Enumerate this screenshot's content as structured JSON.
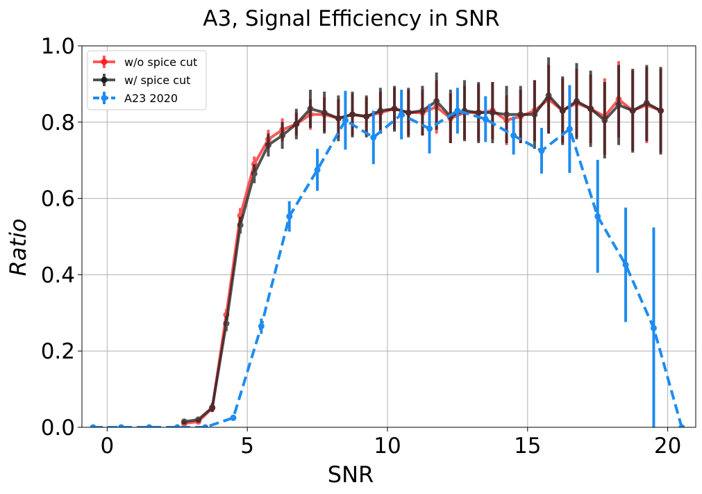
{
  "chart_data": {
    "type": "line",
    "title": "A3, Signal Efficiency in SNR",
    "xlabel": "SNR",
    "ylabel": "Ratio",
    "xlim": [
      -0.9,
      21.0
    ],
    "ylim": [
      0.0,
      1.0
    ],
    "xticks": [
      0,
      5,
      10,
      15,
      20
    ],
    "yticks": [
      0.0,
      0.2,
      0.4,
      0.6,
      0.8,
      1.0
    ],
    "xtick_labels": [
      "0",
      "5",
      "10",
      "15",
      "20"
    ],
    "ytick_labels": [
      "0.0",
      "0.2",
      "0.4",
      "0.6",
      "0.8",
      "1.0"
    ],
    "grid": true,
    "legend_position": "top-left",
    "series": [
      {
        "name": "w/o spice cut",
        "color": "#ff2020",
        "line_style": "solid",
        "x": [
          2.75,
          3.25,
          3.75,
          4.25,
          4.75,
          5.25,
          5.75,
          6.25,
          6.75,
          7.25,
          7.75,
          8.25,
          8.75,
          9.25,
          9.75,
          10.25,
          10.75,
          11.25,
          11.75,
          12.25,
          12.75,
          13.25,
          13.75,
          14.25,
          14.75,
          15.25,
          15.75,
          16.25,
          16.75,
          17.25,
          17.75,
          18.25,
          18.75,
          19.25,
          19.75
        ],
        "y": [
          0.01,
          0.015,
          0.05,
          0.295,
          0.555,
          0.69,
          0.755,
          0.78,
          0.795,
          0.82,
          0.82,
          0.81,
          0.82,
          0.815,
          0.825,
          0.835,
          0.825,
          0.825,
          0.84,
          0.81,
          0.825,
          0.825,
          0.83,
          0.805,
          0.815,
          0.83,
          0.86,
          0.83,
          0.85,
          0.835,
          0.815,
          0.86,
          0.83,
          0.845,
          0.83
        ],
        "err": [
          0.006,
          0.007,
          0.01,
          0.015,
          0.02,
          0.02,
          0.025,
          0.03,
          0.03,
          0.04,
          0.045,
          0.05,
          0.055,
          0.05,
          0.055,
          0.055,
          0.06,
          0.06,
          0.07,
          0.065,
          0.07,
          0.075,
          0.075,
          0.065,
          0.07,
          0.08,
          0.09,
          0.085,
          0.09,
          0.09,
          0.1,
          0.1,
          0.105,
          0.1,
          0.11
        ]
      },
      {
        "name": "w/ spice cut",
        "color": "#1a1a1a",
        "line_style": "solid",
        "x": [
          2.75,
          3.25,
          3.75,
          4.25,
          4.75,
          5.25,
          5.75,
          6.25,
          6.75,
          7.25,
          7.75,
          8.25,
          8.75,
          9.25,
          9.75,
          10.25,
          10.75,
          11.25,
          11.75,
          12.25,
          12.75,
          13.25,
          13.75,
          14.25,
          14.75,
          15.25,
          15.75,
          16.25,
          16.75,
          17.25,
          17.75,
          18.25,
          18.75,
          19.25,
          19.75
        ],
        "y": [
          0.015,
          0.02,
          0.052,
          0.272,
          0.53,
          0.665,
          0.74,
          0.765,
          0.795,
          0.835,
          0.825,
          0.81,
          0.82,
          0.815,
          0.83,
          0.835,
          0.825,
          0.83,
          0.855,
          0.815,
          0.83,
          0.825,
          0.825,
          0.82,
          0.82,
          0.82,
          0.87,
          0.83,
          0.855,
          0.835,
          0.805,
          0.845,
          0.83,
          0.85,
          0.83
        ],
        "err": [
          0.007,
          0.008,
          0.012,
          0.02,
          0.022,
          0.025,
          0.03,
          0.035,
          0.04,
          0.05,
          0.055,
          0.06,
          0.06,
          0.055,
          0.06,
          0.06,
          0.065,
          0.065,
          0.075,
          0.07,
          0.08,
          0.08,
          0.08,
          0.075,
          0.075,
          0.09,
          0.1,
          0.09,
          0.1,
          0.1,
          0.1,
          0.105,
          0.11,
          0.1,
          0.115
        ]
      },
      {
        "name": "A23 2020",
        "color": "#1e8cf0",
        "line_style": "dashed",
        "x": [
          -0.5,
          0.5,
          1.5,
          2.5,
          3.5,
          4.5,
          5.5,
          6.5,
          7.5,
          8.5,
          9.5,
          10.5,
          11.5,
          12.5,
          13.5,
          14.5,
          15.5,
          16.5,
          17.5,
          18.5,
          19.5,
          20.5
        ],
        "y": [
          0.0,
          0.0,
          0.0,
          0.0,
          0.0,
          0.025,
          0.265,
          0.553,
          0.675,
          0.805,
          0.76,
          0.82,
          0.783,
          0.83,
          0.808,
          0.765,
          0.725,
          0.782,
          0.553,
          0.426,
          0.26,
          0.0
        ],
        "err": [
          0.0,
          0.0,
          0.0,
          0.0,
          0.0,
          0.008,
          0.02,
          0.04,
          0.055,
          0.077,
          0.07,
          0.065,
          0.065,
          0.06,
          0.06,
          0.05,
          0.06,
          0.115,
          0.148,
          0.15,
          0.264,
          0.0
        ]
      }
    ]
  }
}
